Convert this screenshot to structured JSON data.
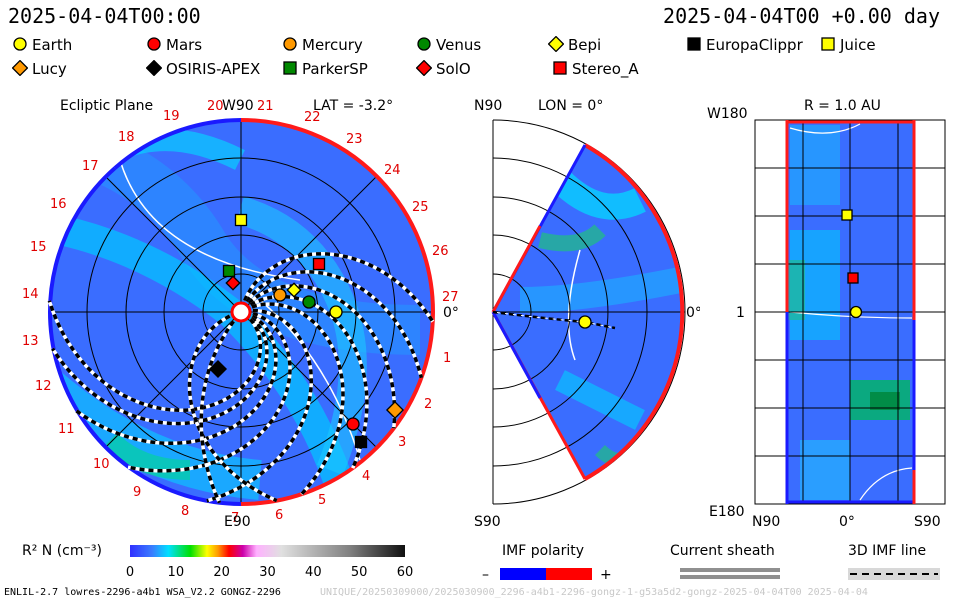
{
  "header": {
    "time_left": "2025-04-04T00:00",
    "time_right": "2025-04-04T00 +0.00 day"
  },
  "legend": [
    {
      "name": "Earth",
      "marker": "circle",
      "fill": "#ffff00"
    },
    {
      "name": "Mars",
      "marker": "circle",
      "fill": "#ff0000"
    },
    {
      "name": "Mercury",
      "marker": "circle",
      "fill": "#ff9900"
    },
    {
      "name": "Venus",
      "marker": "circle",
      "fill": "#008800"
    },
    {
      "name": "Bepi",
      "marker": "diamond",
      "fill": "#ffff00"
    },
    {
      "name": "EuropaClippr",
      "marker": "square",
      "fill": "#000000"
    },
    {
      "name": "Juice",
      "marker": "square",
      "fill": "#ffff00"
    },
    {
      "name": "Lucy",
      "marker": "diamond",
      "fill": "#ff9900"
    },
    {
      "name": "OSIRIS-APEX",
      "marker": "diamond",
      "fill": "#000000"
    },
    {
      "name": "ParkerSP",
      "marker": "square",
      "fill": "#008800"
    },
    {
      "name": "SolO",
      "marker": "diamond",
      "fill": "#ff0000"
    },
    {
      "name": "Stereo_A",
      "marker": "square",
      "fill": "#ff0000"
    }
  ],
  "ecliptic": {
    "label": "Ecliptic Plane",
    "top_label": "W90",
    "bottom_label": "E90",
    "right_label": "0°",
    "lat_label": "LAT = -3.2°",
    "carrington_ticks": [
      "1",
      "2",
      "3",
      "4",
      "5",
      "6",
      "7",
      "8",
      "9",
      "10",
      "11",
      "12",
      "13",
      "14",
      "15",
      "16",
      "17",
      "18",
      "19",
      "20",
      "21",
      "22",
      "23",
      "24",
      "25",
      "26",
      "27"
    ]
  },
  "meridional": {
    "top_label": "N90",
    "bottom_label": "S90",
    "right_label": "0°",
    "lon_label": "LON = 0°"
  },
  "radial": {
    "r_label": "R = 1.0 AU",
    "top_label": "W180",
    "bottom_label": "E180",
    "mid_label": "1",
    "x_labels": [
      "N90",
      "0°",
      "S90"
    ]
  },
  "colorbar": {
    "label": "R² N (cm⁻³)",
    "ticks": [
      "0",
      "10",
      "20",
      "30",
      "40",
      "50",
      "60"
    ]
  },
  "key": {
    "imf_polarity": "IMF polarity",
    "minus": "–",
    "plus": "+",
    "current_sheath": "Current sheath",
    "imf_line": "3D IMF line",
    "colors": {
      "negative": "#0000ff",
      "positive": "#ff0000"
    }
  },
  "footer": {
    "left": "ENLIL-2.7 lowres-2296-a4b1 WSA_V2.2 GONGZ-2296",
    "right": "UNIQUE/20250309000/2025030900_2296-a4b1-2296-gongz-1-g53a5d2-gongz-2025-04-04T00  2025-04-04"
  }
}
